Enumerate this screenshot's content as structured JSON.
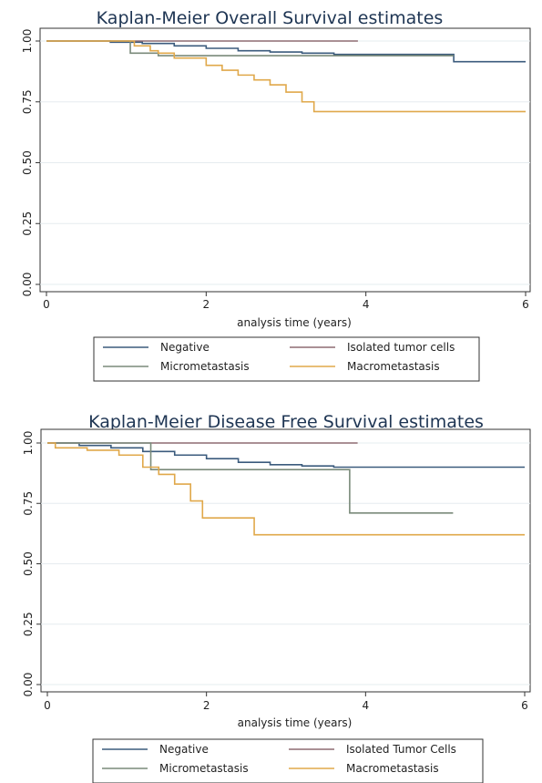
{
  "chart_data": [
    {
      "type": "line",
      "title": "Kaplan-Meier Overall Survival estimates",
      "xlabel": "analysis time (years)",
      "ylabel": "",
      "xlim": [
        0,
        6
      ],
      "ylim": [
        0,
        1
      ],
      "xticks": [
        0,
        2,
        4,
        6
      ],
      "yticks": [
        0.0,
        0.25,
        0.5,
        0.75,
        1.0
      ],
      "ytick_labels": [
        "0.00",
        "0.25",
        "0.50",
        "0.75",
        "1.00"
      ],
      "grid": true,
      "legend_position": "bottom",
      "series": [
        {
          "name": "Negative",
          "color": "#3b5b7d",
          "x": [
            0,
            0.4,
            0.8,
            1.2,
            1.6,
            2.0,
            2.4,
            2.8,
            3.2,
            3.6,
            4.0,
            4.5,
            5.07,
            5.1,
            6.0
          ],
          "y": [
            1.0,
            1.0,
            0.995,
            0.99,
            0.98,
            0.97,
            0.96,
            0.955,
            0.95,
            0.945,
            0.945,
            0.945,
            0.945,
            0.915,
            0.915
          ]
        },
        {
          "name": "Isolated tumor cells",
          "color": "#8e6b72",
          "x": [
            0,
            3.9
          ],
          "y": [
            1.0,
            1.0
          ]
        },
        {
          "name": "Micrometastasis",
          "color": "#7a8a7a",
          "x": [
            0,
            1.05,
            1.05,
            1.4,
            1.4,
            5.1
          ],
          "y": [
            1.0,
            1.0,
            0.95,
            0.95,
            0.94,
            0.94
          ]
        },
        {
          "name": "Macrometastasis",
          "color": "#e0a84a",
          "x": [
            0,
            0.9,
            1.1,
            1.3,
            1.4,
            1.6,
            2.0,
            2.2,
            2.4,
            2.6,
            2.8,
            3.0,
            3.2,
            3.35,
            6.0
          ],
          "y": [
            1.0,
            1.0,
            0.98,
            0.96,
            0.95,
            0.93,
            0.9,
            0.88,
            0.86,
            0.84,
            0.82,
            0.79,
            0.75,
            0.71,
            0.71
          ]
        }
      ]
    },
    {
      "type": "line",
      "title": "Kaplan-Meier Disease Free Survival estimates",
      "xlabel": "analysis time (years)",
      "ylabel": "",
      "xlim": [
        0,
        6
      ],
      "ylim": [
        0,
        1
      ],
      "xticks": [
        0,
        2,
        4,
        6
      ],
      "yticks": [
        0.0,
        0.25,
        0.5,
        0.75,
        1.0
      ],
      "ytick_labels": [
        "0.00",
        "0.25",
        "0.50",
        "0.75",
        "1.00"
      ],
      "grid": true,
      "legend_position": "bottom",
      "series": [
        {
          "name": "Negative",
          "color": "#3b5b7d",
          "x": [
            0,
            0.4,
            0.8,
            1.2,
            1.6,
            2.0,
            2.4,
            2.8,
            3.2,
            3.6,
            4.0,
            6.0
          ],
          "y": [
            1.0,
            0.99,
            0.98,
            0.965,
            0.95,
            0.935,
            0.92,
            0.91,
            0.905,
            0.9,
            0.9,
            0.9
          ]
        },
        {
          "name": "Isolated Tumor Cells",
          "color": "#8e6b72",
          "x": [
            0,
            3.9
          ],
          "y": [
            1.0,
            1.0
          ]
        },
        {
          "name": "Micrometastasis",
          "color": "#7a8a7a",
          "x": [
            0,
            1.3,
            1.3,
            3.8,
            3.8,
            5.1
          ],
          "y": [
            1.0,
            1.0,
            0.89,
            0.89,
            0.71,
            0.71
          ]
        },
        {
          "name": "Macrometastasis",
          "color": "#e0a84a",
          "x": [
            0,
            0.1,
            0.5,
            0.9,
            1.2,
            1.4,
            1.6,
            1.8,
            1.95,
            2.6,
            6.0
          ],
          "y": [
            1.0,
            0.98,
            0.97,
            0.95,
            0.9,
            0.87,
            0.83,
            0.76,
            0.69,
            0.62,
            0.62
          ]
        }
      ]
    }
  ]
}
